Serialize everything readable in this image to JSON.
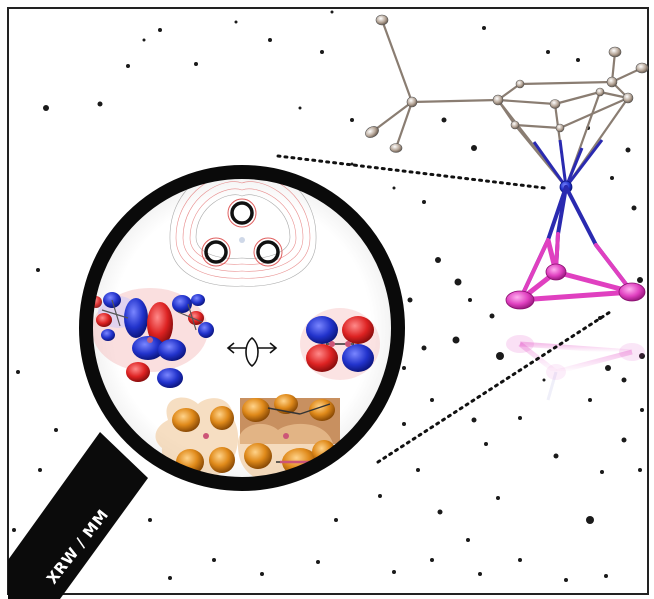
{
  "handle_label": "XRW / MM",
  "colors": {
    "frame_border": "#222222",
    "ring": "#0a0a0a",
    "handle": "#0b0b0b",
    "phase_blue": "#2233cc",
    "phase_red": "#dd2222",
    "cluster_magenta": "#e040c0",
    "ligand_gray": "#b8a89a",
    "density_orange": "#e08a1a"
  }
}
